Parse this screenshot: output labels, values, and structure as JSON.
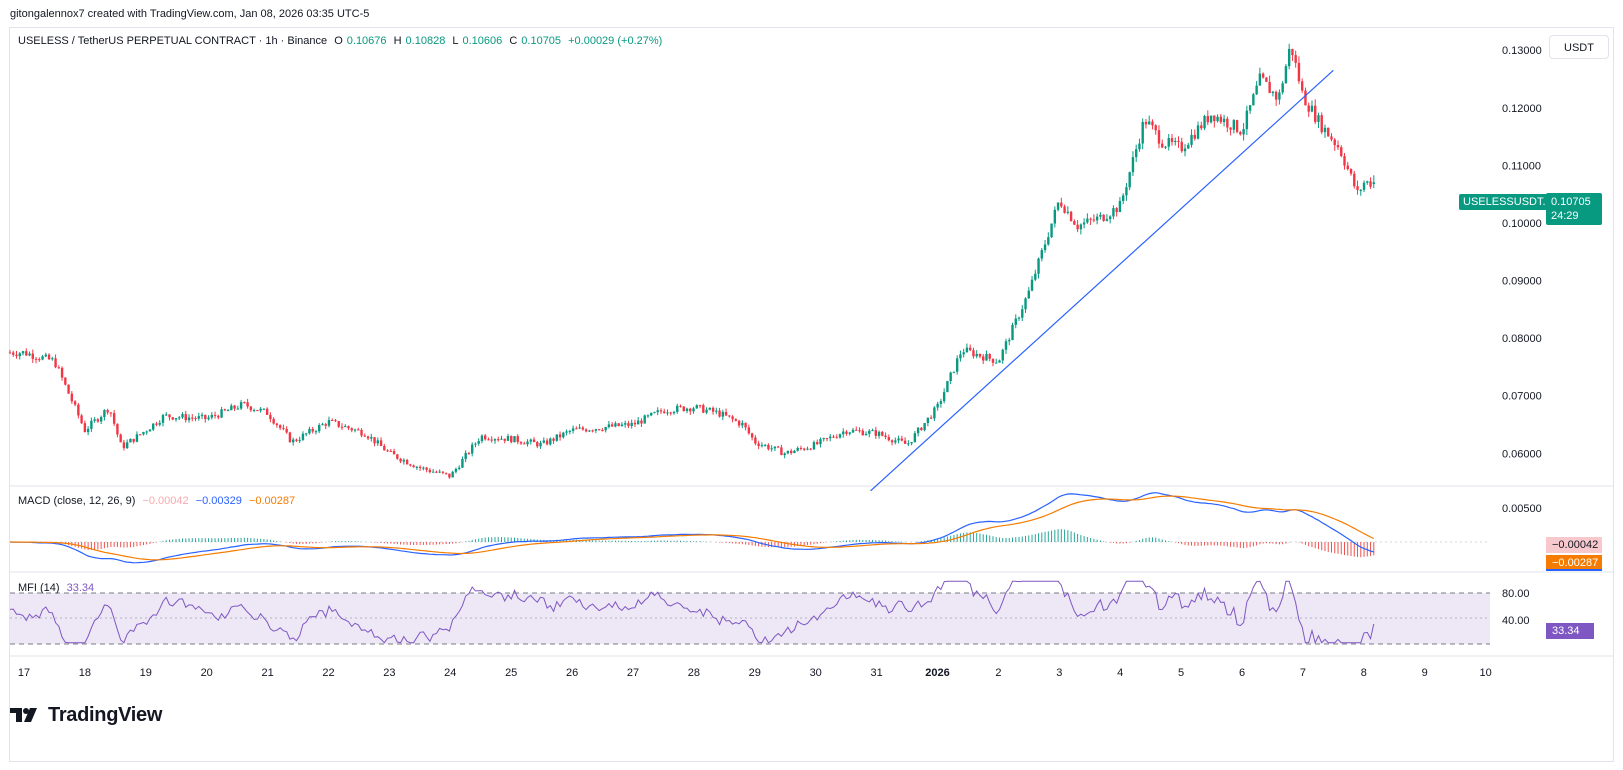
{
  "header": {
    "credit": "gitongalennox7 created with TradingView.com, Jan 08, 2026 03:35 UTC-5"
  },
  "currency_button": "USDT",
  "price_legend": {
    "symbol": "USELESS / TetherUS PERPETUAL CONTRACT · 1h · Binance",
    "open_label": "O",
    "open": "0.10676",
    "high_label": "H",
    "high": "0.10828",
    "low_label": "L",
    "low": "0.10606",
    "close_label": "C",
    "close": "0.10705",
    "change": "+0.00029 (+0.27%)"
  },
  "symbol_tag": "USELESSUSDT.P",
  "price_tag": {
    "price": "0.10705",
    "countdown": "24:29"
  },
  "macd_legend": {
    "name": "MACD (close, 12, 26, 9)",
    "histogram": "−0.00042",
    "macd": "−0.00329",
    "signal": "−0.00287"
  },
  "macd_tags": {
    "histogram": "−0.00042",
    "signal": "−0.00287"
  },
  "mfi_legend": {
    "name": "MFI (14)",
    "value": "33.34"
  },
  "mfi_tag": "33.34",
  "footer": {
    "logo_text": "TradingView"
  },
  "colors": {
    "up": "#089981",
    "down": "#f23645",
    "trendline": "#2962ff",
    "macd_line": "#2962ff",
    "signal_line": "#f57c00",
    "mfi_line": "#7e57c2",
    "mfi_band": "#ede7f6",
    "border": "#e0e3eb"
  },
  "chart_data": [
    {
      "type": "candlestick",
      "name": "USELESS / TetherUS PERPETUAL CONTRACT · 1h · Binance",
      "x_tick_labels": [
        "17",
        "18",
        "19",
        "20",
        "21",
        "22",
        "23",
        "24",
        "25",
        "26",
        "27",
        "28",
        "29",
        "30",
        "31",
        "2026",
        "2",
        "3",
        "4",
        "5",
        "6",
        "7",
        "8",
        "9",
        "10"
      ],
      "y_tick_labels": [
        "0.13000",
        "0.12000",
        "0.11000",
        "0.10000",
        "0.09000",
        "0.08000",
        "0.07000",
        "0.06000"
      ],
      "ylim": [
        0.0545,
        0.1335
      ],
      "approx_close_path": [
        [
          "17",
          0.0775
        ],
        [
          "17.5",
          0.076
        ],
        [
          "18",
          0.064
        ],
        [
          "18.4",
          0.068
        ],
        [
          "18.6",
          0.061
        ],
        [
          "19",
          0.064
        ],
        [
          "19.3",
          0.0665
        ],
        [
          "20",
          0.066
        ],
        [
          "20.6",
          0.0685
        ],
        [
          "21",
          0.067
        ],
        [
          "21.4",
          0.062
        ],
        [
          "22",
          0.0655
        ],
        [
          "22.6",
          0.0635
        ],
        [
          "23",
          0.06
        ],
        [
          "23.5",
          0.0575
        ],
        [
          "24",
          0.056
        ],
        [
          "24.5",
          0.063
        ],
        [
          "25",
          0.0625
        ],
        [
          "25.5",
          0.0615
        ],
        [
          "26",
          0.064
        ],
        [
          "26.5",
          0.0645
        ],
        [
          "27",
          0.065
        ],
        [
          "27.5",
          0.0675
        ],
        [
          "28",
          0.068
        ],
        [
          "28.4",
          0.067
        ],
        [
          "28.8",
          0.065
        ],
        [
          "29",
          0.062
        ],
        [
          "29.5",
          0.06
        ],
        [
          "30",
          0.0615
        ],
        [
          "30.5",
          0.064
        ],
        [
          "31",
          0.0635
        ],
        [
          "31.5",
          0.0615
        ],
        [
          "2026",
          0.068
        ],
        [
          "2026.4",
          0.078
        ],
        [
          "2",
          0.076
        ],
        [
          "2.5",
          0.088
        ],
        [
          "3",
          0.104
        ],
        [
          "3.3",
          0.0995
        ],
        [
          "3.7",
          0.101
        ],
        [
          "4",
          0.103
        ],
        [
          "4.4",
          0.118
        ],
        [
          "4.7",
          0.114
        ],
        [
          "5",
          0.113
        ],
        [
          "5.5",
          0.119
        ],
        [
          "6",
          0.116
        ],
        [
          "6.3",
          0.125
        ],
        [
          "6.6",
          0.1215
        ],
        [
          "6.8",
          0.131
        ],
        [
          "7",
          0.122
        ],
        [
          "7.3",
          0.117
        ],
        [
          "7.6",
          0.113
        ],
        [
          "7.9",
          0.105
        ],
        [
          "8",
          0.107
        ]
      ],
      "last": {
        "open": 0.10676,
        "high": 0.10828,
        "low": 0.10606,
        "close": 0.10705,
        "change": 0.00029,
        "change_pct": 0.27
      },
      "trendline": {
        "from": [
          "31",
          0.0535
        ],
        "to": [
          "7.5",
          0.1265
        ]
      }
    },
    {
      "type": "line",
      "name": "MACD (close, 12, 26, 9)",
      "y_tick_labels": [
        "0.00500"
      ],
      "series": [
        {
          "name": "MACD",
          "last": -0.00329
        },
        {
          "name": "Signal",
          "last": -0.00287
        },
        {
          "name": "Histogram",
          "last": -0.00042
        }
      ]
    },
    {
      "type": "line",
      "name": "MFI (14)",
      "y_tick_labels": [
        "80.00"
      ],
      "band": [
        20,
        80
      ],
      "ylim": [
        0,
        100
      ],
      "last": 33.34
    }
  ]
}
